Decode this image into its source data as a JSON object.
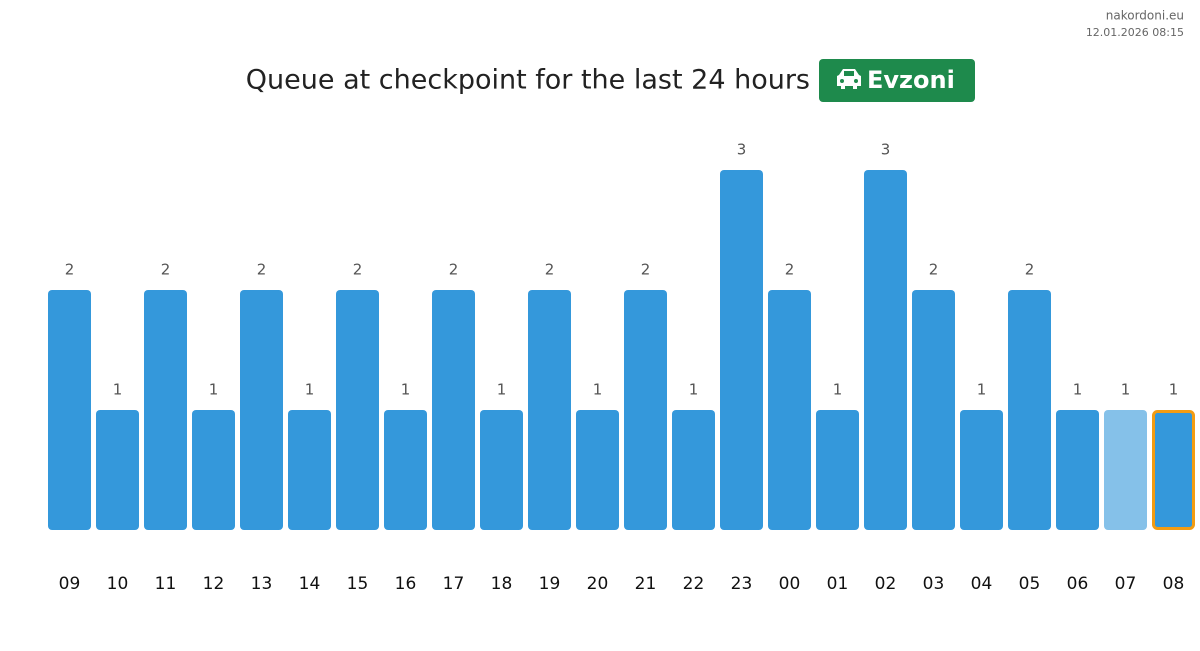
{
  "site": "nakordoni.eu",
  "timestamp": "12.01.2026 08:15",
  "chart_data": {
    "type": "bar",
    "title": "Queue at checkpoint for the last 24 hours",
    "badge": "Evzoni",
    "categories": [
      "09",
      "10",
      "11",
      "12",
      "13",
      "14",
      "15",
      "16",
      "17",
      "18",
      "19",
      "20",
      "21",
      "22",
      "23",
      "00",
      "01",
      "02",
      "03",
      "04",
      "05",
      "06",
      "07",
      "08"
    ],
    "values": [
      2,
      1,
      2,
      1,
      2,
      1,
      2,
      1,
      2,
      1,
      2,
      1,
      2,
      1,
      3,
      2,
      1,
      3,
      2,
      1,
      2,
      1,
      1,
      1
    ],
    "colors": [
      "#3498db",
      "#3498db",
      "#3498db",
      "#3498db",
      "#3498db",
      "#3498db",
      "#3498db",
      "#3498db",
      "#3498db",
      "#3498db",
      "#3498db",
      "#3498db",
      "#3498db",
      "#3498db",
      "#3498db",
      "#3498db",
      "#3498db",
      "#3498db",
      "#3498db",
      "#3498db",
      "#3498db",
      "#3498db",
      "#85c1e9",
      "#3498db"
    ],
    "outline": {
      "index": 23,
      "color": "#f39c12"
    },
    "badge_color": "#1e8a4c",
    "ylim": [
      0,
      3
    ]
  }
}
